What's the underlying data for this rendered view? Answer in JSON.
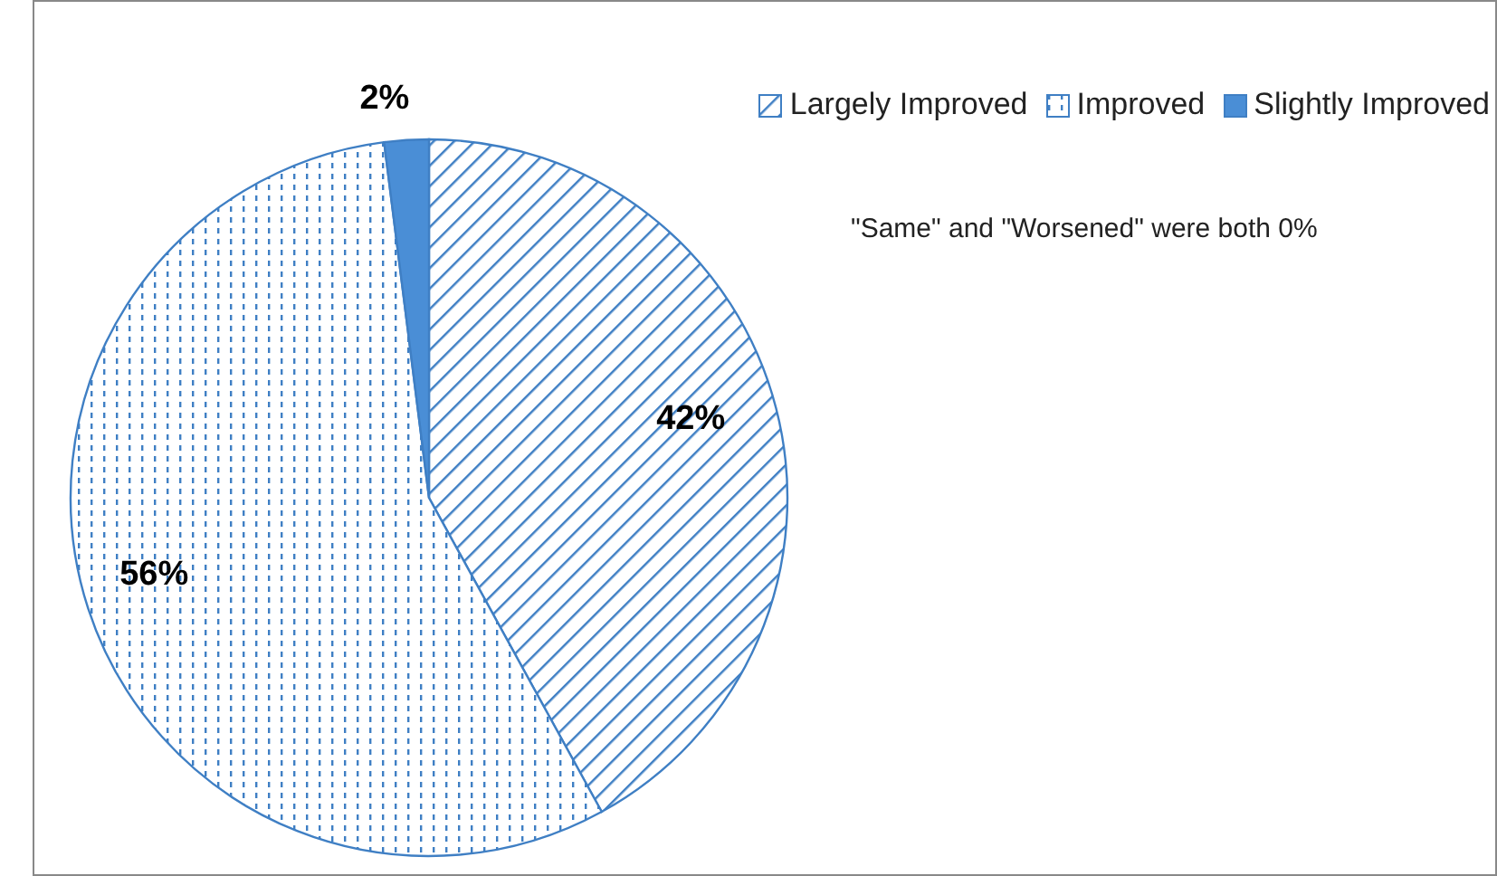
{
  "chart_data": {
    "type": "pie",
    "categories": [
      "Largely Improved",
      "Improved",
      "Slightly Improved"
    ],
    "values": [
      42,
      56,
      2
    ],
    "colors": [
      "#3f7fc4",
      "#3f7fc4",
      "#4a8ed6"
    ],
    "value_labels": [
      "42%",
      "56%",
      "2%"
    ],
    "legend": "top right",
    "annotations": [
      "\"Same\" and \"Worsened\" were both 0%"
    ]
  }
}
